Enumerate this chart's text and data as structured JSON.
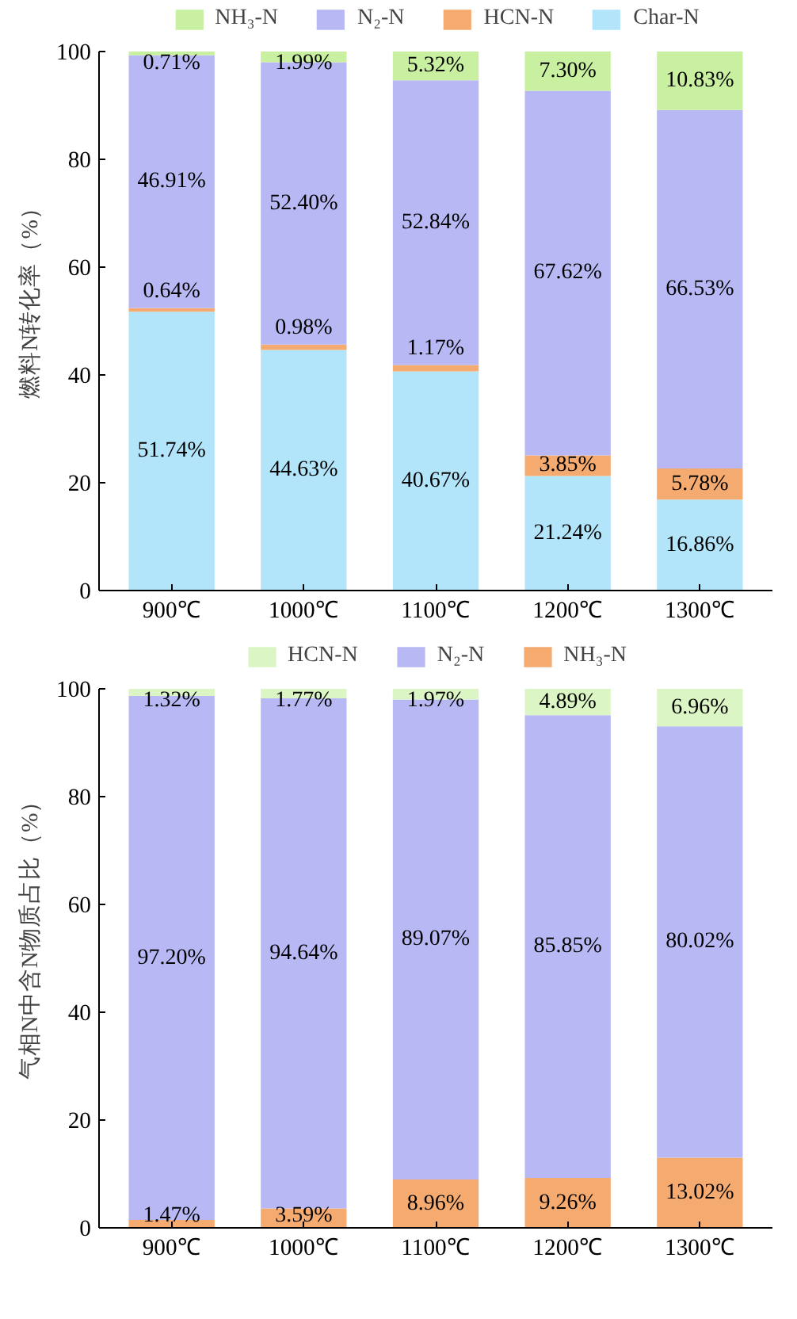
{
  "chart_data": [
    {
      "type": "bar",
      "stacked": true,
      "ylabel": "燃料N转化率（%）",
      "categories": [
        "900℃",
        "1000℃",
        "1100℃",
        "1200℃",
        "1300℃"
      ],
      "ylim": [
        0,
        100
      ],
      "yticks": [
        0,
        20,
        40,
        60,
        80,
        100
      ],
      "legend": "top",
      "grid": false,
      "series": [
        {
          "name": "Char-N",
          "color": "#b3e5fa",
          "values": [
            51.74,
            44.63,
            40.67,
            21.24,
            16.86
          ],
          "value_labels": [
            "51.74%",
            "44.63%",
            "40.67%",
            "21.24%",
            "16.86%"
          ]
        },
        {
          "name": "HCN-N",
          "color": "#f5aa70",
          "values": [
            0.64,
            0.98,
            1.17,
            3.85,
            5.78
          ],
          "value_labels": [
            "0.64%",
            "0.98%",
            "1.17%",
            "3.85%",
            "5.78%"
          ]
        },
        {
          "name": "N₂-N",
          "color": "#b8b8f5",
          "values": [
            46.91,
            52.4,
            52.84,
            67.62,
            66.53
          ],
          "value_labels": [
            "46.91%",
            "52.40%",
            "52.84%",
            "67.62%",
            "66.53%"
          ]
        },
        {
          "name": "NH₃-N",
          "color": "#c8f0a0",
          "values": [
            0.71,
            1.99,
            5.32,
            7.3,
            10.83
          ],
          "value_labels": [
            "0.71%",
            "1.99%",
            "5.32%",
            "7.30%",
            "10.83%"
          ]
        }
      ]
    },
    {
      "type": "bar",
      "stacked": true,
      "ylabel": "气相N中含N物质占比（%）",
      "categories": [
        "900℃",
        "1000℃",
        "1100℃",
        "1200℃",
        "1300℃"
      ],
      "ylim": [
        0,
        100
      ],
      "yticks": [
        0,
        20,
        40,
        60,
        80,
        100
      ],
      "legend": "top",
      "grid": false,
      "series": [
        {
          "name": "NH₃-N",
          "color": "#f5aa70",
          "values": [
            1.47,
            3.59,
            8.96,
            9.26,
            13.02
          ],
          "value_labels": [
            "1.47%",
            "3.59%",
            "8.96%",
            "9.26%",
            "13.02%"
          ]
        },
        {
          "name": "N₂-N",
          "color": "#b8b8f5",
          "values": [
            97.2,
            94.64,
            89.07,
            85.85,
            80.02
          ],
          "value_labels": [
            "97.20%",
            "94.64%",
            "89.07%",
            "85.85%",
            "80.02%"
          ]
        },
        {
          "name": "HCN-N",
          "color": "#dcf5c4",
          "values": [
            1.32,
            1.77,
            1.97,
            4.89,
            6.96
          ],
          "value_labels": [
            "1.32%",
            "1.77%",
            "1.97%",
            "4.89%",
            "6.96%"
          ]
        }
      ]
    }
  ]
}
